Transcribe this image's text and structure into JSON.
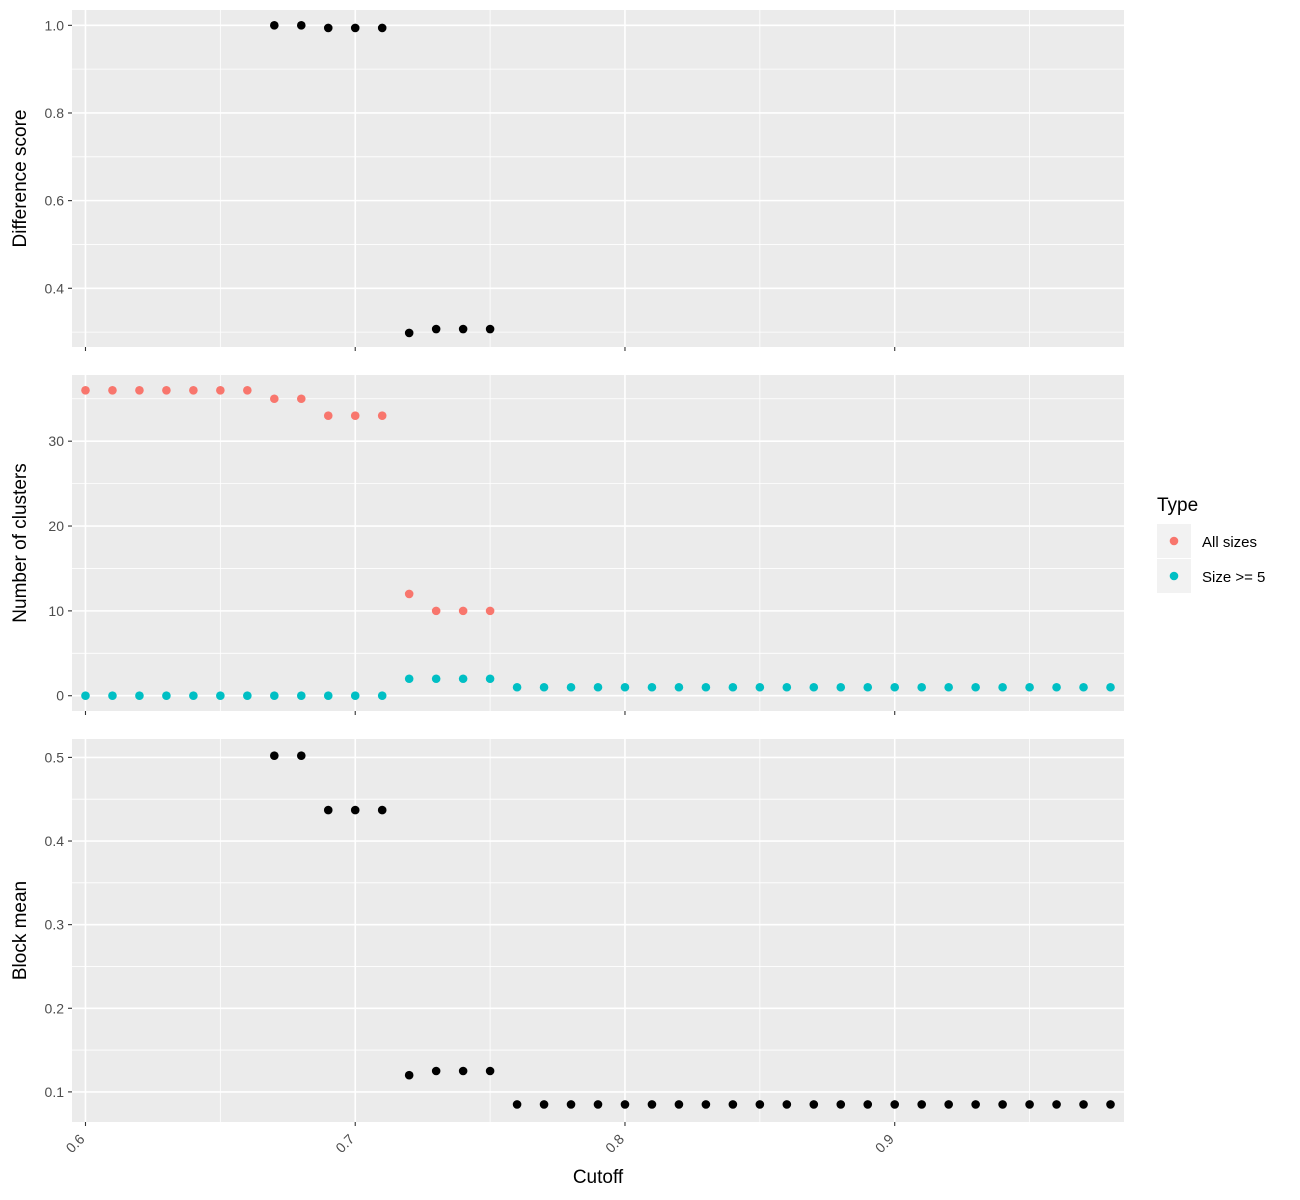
{
  "chart_data": {
    "type": "scatter",
    "xlabel": "Cutoff",
    "xlim": [
      0.595,
      0.985
    ],
    "x_ticks": [
      0.6,
      0.7,
      0.8,
      0.9
    ],
    "x_tick_labels": [
      "0.6",
      "0.7",
      "0.8",
      "0.9"
    ],
    "grid": true,
    "panels": [
      {
        "id": "difference-score",
        "ylabel": "Difference score",
        "ylim": [
          0.266,
          1.035
        ],
        "y_ticks": [
          0.4,
          0.6,
          0.8,
          1.0
        ],
        "y_tick_labels": [
          "0.4",
          "0.6",
          "0.8",
          "1.0"
        ],
        "series": [
          {
            "color": "#000000",
            "x": [
              0.67,
              0.68,
              0.69,
              0.7,
              0.71,
              0.72,
              0.73,
              0.74,
              0.75
            ],
            "y": [
              1.0,
              1.0,
              0.994,
              0.994,
              0.994,
              0.298,
              0.307,
              0.307,
              0.307
            ]
          }
        ]
      },
      {
        "id": "number-of-clusters",
        "ylabel": "Number of clusters",
        "ylim": [
          -1.8,
          37.8
        ],
        "y_ticks": [
          0,
          10,
          20,
          30
        ],
        "y_tick_labels": [
          "0",
          "10",
          "20",
          "30"
        ],
        "series": [
          {
            "name": "All sizes",
            "color": "#f8766d",
            "x": [
              0.6,
              0.61,
              0.62,
              0.63,
              0.64,
              0.65,
              0.66,
              0.67,
              0.68,
              0.69,
              0.7,
              0.71,
              0.72,
              0.73,
              0.74,
              0.75
            ],
            "y": [
              36,
              36,
              36,
              36,
              36,
              36,
              36,
              35,
              35,
              33,
              33,
              33,
              12,
              10,
              10,
              10
            ]
          },
          {
            "name": "Size >= 5",
            "color": "#00bfc4",
            "x": [
              0.6,
              0.61,
              0.62,
              0.63,
              0.64,
              0.65,
              0.66,
              0.67,
              0.68,
              0.69,
              0.7,
              0.71,
              0.72,
              0.73,
              0.74,
              0.75,
              0.76,
              0.77,
              0.78,
              0.79,
              0.8,
              0.81,
              0.82,
              0.83,
              0.84,
              0.85,
              0.86,
              0.87,
              0.88,
              0.89,
              0.9,
              0.91,
              0.92,
              0.93,
              0.94,
              0.95,
              0.96,
              0.97,
              0.98
            ],
            "y": [
              0,
              0,
              0,
              0,
              0,
              0,
              0,
              0,
              0,
              0,
              0,
              0,
              2,
              2,
              2,
              2,
              1,
              1,
              1,
              1,
              1,
              1,
              1,
              1,
              1,
              1,
              1,
              1,
              1,
              1,
              1,
              1,
              1,
              1,
              1,
              1,
              1,
              1,
              1
            ]
          }
        ]
      },
      {
        "id": "block-mean",
        "ylabel": "Block mean",
        "ylim": [
          0.064,
          0.522
        ],
        "y_ticks": [
          0.1,
          0.2,
          0.3,
          0.4,
          0.5
        ],
        "y_tick_labels": [
          "0.1",
          "0.2",
          "0.3",
          "0.4",
          "0.5"
        ],
        "series": [
          {
            "color": "#000000",
            "x": [
              0.67,
              0.68,
              0.69,
              0.7,
              0.71,
              0.72,
              0.73,
              0.74,
              0.75,
              0.76,
              0.77,
              0.78,
              0.79,
              0.8,
              0.81,
              0.82,
              0.83,
              0.84,
              0.85,
              0.86,
              0.87,
              0.88,
              0.89,
              0.9,
              0.91,
              0.92,
              0.93,
              0.94,
              0.95,
              0.96,
              0.97,
              0.98
            ],
            "y": [
              0.502,
              0.502,
              0.437,
              0.437,
              0.437,
              0.12,
              0.125,
              0.125,
              0.125,
              0.085,
              0.085,
              0.085,
              0.085,
              0.085,
              0.085,
              0.085,
              0.085,
              0.085,
              0.085,
              0.085,
              0.085,
              0.085,
              0.085,
              0.085,
              0.085,
              0.085,
              0.085,
              0.085,
              0.085,
              0.085,
              0.085,
              0.085
            ]
          }
        ]
      }
    ],
    "legend": {
      "title": "Type",
      "position": "right",
      "entries": [
        {
          "label": "All sizes",
          "color": "#f8766d"
        },
        {
          "label": "Size >= 5",
          "color": "#00bfc4"
        }
      ]
    }
  }
}
